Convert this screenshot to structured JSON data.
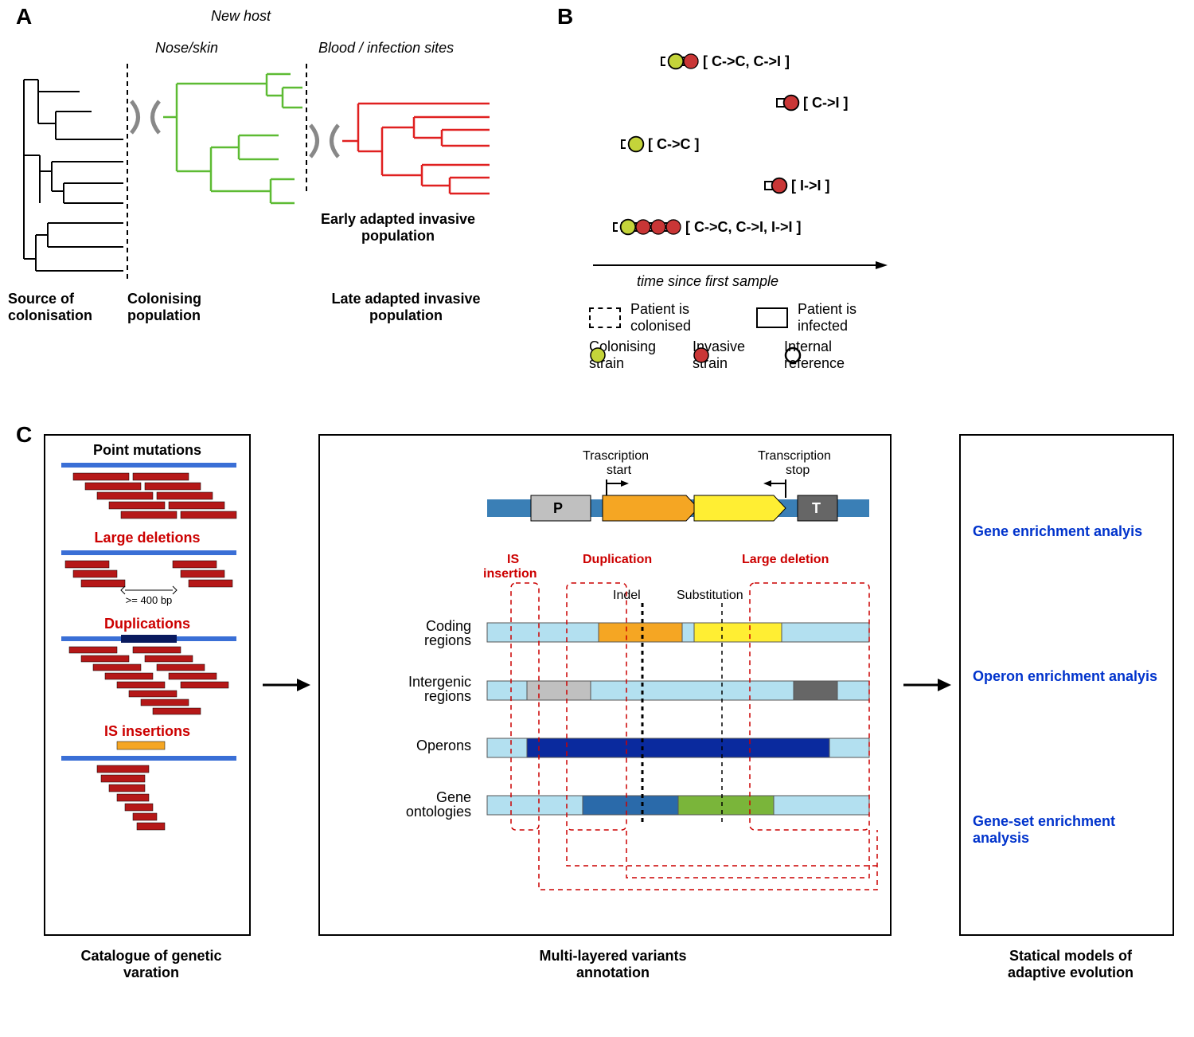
{
  "panelA": {
    "label": "A",
    "newHost": "New host",
    "noseSkin": "Nose/skin",
    "bloodInfection": "Blood / infection sites",
    "sourceCol": "Source of colonisation",
    "colonisingPop": "Colonising population",
    "earlyAdapted": "Early adapted invasive population",
    "lateAdapted": "Late adapted invasive population",
    "tree": {
      "sourceColor": "#000000",
      "colonisingColor": "#5dbb33",
      "invasiveColor": "#e02020",
      "bottleneckColor": "#888888"
    }
  },
  "panelB": {
    "label": "B",
    "rows": [
      {
        "boxes": [
          {
            "type": "col",
            "items": [
              "c",
              "c",
              "c"
            ]
          },
          {
            "type": "inf",
            "items": [
              "c",
              "i"
            ]
          }
        ],
        "tag": "[ C->C, C->I ]"
      },
      {
        "boxes": [
          {
            "type": "inf",
            "items": [
              "c",
              "i"
            ]
          }
        ],
        "tag": "[ C->I ]"
      },
      {
        "boxes": [
          {
            "type": "col",
            "items": [
              "c",
              "c",
              "c",
              "c"
            ]
          }
        ],
        "tag": "[ C->C ]"
      },
      {
        "boxes": [
          {
            "type": "inf",
            "items": [
              "i",
              "i",
              "i",
              "i"
            ]
          }
        ],
        "tag": "[ I->I ]"
      },
      {
        "boxes": [
          {
            "type": "col",
            "items": [
              "c",
              "c"
            ]
          },
          {
            "type": "inf",
            "items": [
              "c",
              "i"
            ]
          },
          {
            "type": "inf",
            "items": [
              "i",
              "i"
            ]
          },
          {
            "type": "inf",
            "items": [
              "c",
              "i"
            ]
          }
        ],
        "tag": "[ C->C, C->I, I->I ]"
      }
    ],
    "legend": {
      "timeAxis": "time since first sample",
      "patientCol": "Patient is colonised",
      "patientInf": "Patient is infected",
      "colStrain": "Colonising strain",
      "invStrain": "Invasive strain",
      "intRef": "Internal reference"
    },
    "colors": {
      "colonising": "#c4d43a",
      "invasive": "#c93636",
      "refRing": "#000000"
    }
  },
  "panelC": {
    "label": "C",
    "box1": {
      "title": "Catalogue of genetic varation",
      "pointMut": "Point mutations",
      "largeDel": "Large deletions",
      "dup": "Duplications",
      "isIns": "IS insertions",
      "bp": ">= 400 bp",
      "readColor": "#b51818",
      "refColor": "#3a6fd6",
      "darkColor": "#0a1a5e",
      "isColor": "#f5a623"
    },
    "box2": {
      "title": "Multi-layered variants annotation",
      "transStart": "Trascription start",
      "transStop": "Transcription stop",
      "isIns": "IS insertion",
      "dup": "Duplication",
      "largeDel": "Large deletion",
      "indel": "Indel",
      "sub": "Substitution",
      "rowLabels": [
        "Coding regions",
        "Intergenic regions",
        "Operons",
        "Gene ontologies"
      ],
      "P": "P",
      "T": "T",
      "colors": {
        "bg": "#b3e0f0",
        "promoter": "#c0c0c0",
        "terminator": "#666666",
        "gene1": "#f5a623",
        "gene2": "#ffee33",
        "operon": "#0a2a9e",
        "go1": "#2a6aaa",
        "go2": "#7ab53a"
      }
    },
    "box3": {
      "title": "Statical models of adaptive evolution",
      "items": [
        "Gene enrichment analyis",
        "Operon enrichment analyis",
        "Gene-set enrichment analysis"
      ]
    }
  }
}
